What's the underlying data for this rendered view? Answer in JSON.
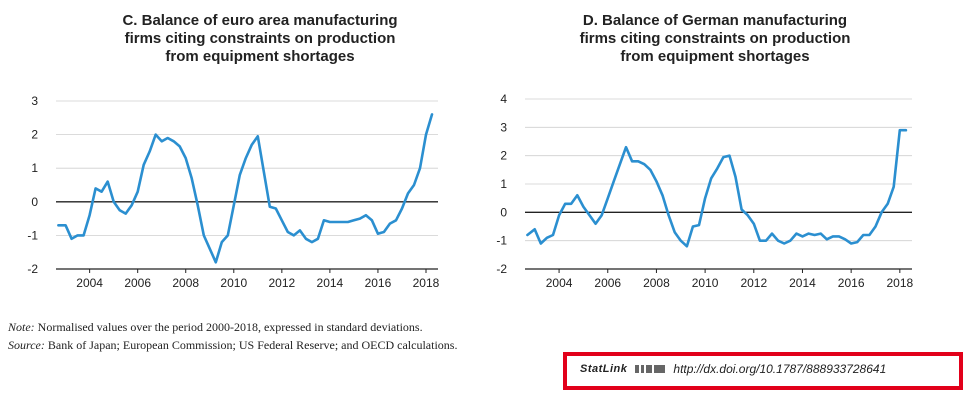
{
  "chart_data": [
    {
      "type": "line",
      "title": "C. Balance of euro area manufacturing firms citing constraints on production from equipment shortages",
      "title_lines": [
        "C. Balance of euro area manufacturing",
        "firms citing constraints on production",
        "from equipment shortages"
      ],
      "xlabel": "",
      "ylabel": "",
      "xlim": [
        2002.6,
        2018.5
      ],
      "ylim": [
        -2,
        3
      ],
      "yticks": [
        3,
        2,
        1,
        0,
        -1,
        -2
      ],
      "xticks": [
        2004,
        2006,
        2008,
        2010,
        2012,
        2014,
        2016,
        2018
      ],
      "grid": true,
      "color": "#2b8fd0",
      "series": [
        {
          "x": [
            2002.7,
            2003.0,
            2003.25,
            2003.5,
            2003.75,
            2004.0,
            2004.25,
            2004.5,
            2004.75,
            2005.0,
            2005.25,
            2005.5,
            2005.75,
            2006.0,
            2006.25,
            2006.5,
            2006.75,
            2007.0,
            2007.25,
            2007.5,
            2007.75,
            2008.0,
            2008.25,
            2008.5,
            2008.75,
            2009.0,
            2009.25,
            2009.5,
            2009.75,
            2010.0,
            2010.25,
            2010.5,
            2010.75,
            2011.0,
            2011.25,
            2011.5,
            2011.75,
            2012.0,
            2012.25,
            2012.5,
            2012.75,
            2013.0,
            2013.25,
            2013.5,
            2013.75,
            2014.0,
            2014.25,
            2014.5,
            2014.75,
            2015.0,
            2015.25,
            2015.5,
            2015.75,
            2016.0,
            2016.25,
            2016.5,
            2016.75,
            2017.0,
            2017.25,
            2017.5,
            2017.75,
            2018.0,
            2018.25
          ],
          "y": [
            -0.7,
            -0.7,
            -1.1,
            -1.0,
            -1.0,
            -0.4,
            0.4,
            0.3,
            0.6,
            0.0,
            -0.25,
            -0.35,
            -0.1,
            0.3,
            1.1,
            1.5,
            2.0,
            1.8,
            1.9,
            1.8,
            1.65,
            1.3,
            0.7,
            -0.1,
            -1.0,
            -1.4,
            -1.8,
            -1.2,
            -1.0,
            -0.1,
            0.8,
            1.3,
            1.7,
            1.95,
            0.9,
            -0.15,
            -0.2,
            -0.55,
            -0.9,
            -1.0,
            -0.85,
            -1.1,
            -1.2,
            -1.1,
            -0.55,
            -0.6,
            -0.6,
            -0.6,
            -0.6,
            -0.55,
            -0.5,
            -0.4,
            -0.55,
            -0.95,
            -0.9,
            -0.65,
            -0.55,
            -0.2,
            0.25,
            0.5,
            1.0,
            2.0,
            2.6
          ]
        }
      ]
    },
    {
      "type": "line",
      "title": "D. Balance of German manufacturing firms citing constraints on production from equipment shortages",
      "title_lines": [
        "D. Balance of German manufacturing",
        "firms citing constraints on production",
        "from equipment shortages"
      ],
      "xlabel": "",
      "ylabel": "",
      "xlim": [
        2002.6,
        2018.5
      ],
      "ylim": [
        -2,
        4
      ],
      "yticks": [
        4,
        3,
        2,
        1,
        0,
        -1,
        -2
      ],
      "xticks": [
        2004,
        2006,
        2008,
        2010,
        2012,
        2014,
        2016,
        2018
      ],
      "grid": true,
      "color": "#2b8fd0",
      "series": [
        {
          "x": [
            2002.7,
            2003.0,
            2003.25,
            2003.5,
            2003.75,
            2004.0,
            2004.25,
            2004.5,
            2004.75,
            2005.0,
            2005.25,
            2005.5,
            2005.75,
            2006.0,
            2006.25,
            2006.5,
            2006.75,
            2007.0,
            2007.25,
            2007.5,
            2007.75,
            2008.0,
            2008.25,
            2008.5,
            2008.75,
            2009.0,
            2009.25,
            2009.5,
            2009.75,
            2010.0,
            2010.25,
            2010.5,
            2010.75,
            2011.0,
            2011.25,
            2011.5,
            2011.75,
            2012.0,
            2012.25,
            2012.5,
            2012.75,
            2013.0,
            2013.25,
            2013.5,
            2013.75,
            2014.0,
            2014.25,
            2014.5,
            2014.75,
            2015.0,
            2015.25,
            2015.5,
            2015.75,
            2016.0,
            2016.25,
            2016.5,
            2016.75,
            2017.0,
            2017.25,
            2017.5,
            2017.75,
            2018.0,
            2018.25
          ],
          "y": [
            -0.8,
            -0.6,
            -1.1,
            -0.9,
            -0.8,
            -0.1,
            0.3,
            0.3,
            0.6,
            0.2,
            -0.1,
            -0.4,
            -0.1,
            0.5,
            1.1,
            1.7,
            2.3,
            1.8,
            1.8,
            1.7,
            1.5,
            1.1,
            0.6,
            -0.1,
            -0.7,
            -1.0,
            -1.2,
            -0.5,
            -0.45,
            0.5,
            1.2,
            1.55,
            1.95,
            2.0,
            1.25,
            0.1,
            -0.1,
            -0.4,
            -1.0,
            -1.0,
            -0.75,
            -1.0,
            -1.1,
            -1.0,
            -0.75,
            -0.85,
            -0.75,
            -0.8,
            -0.75,
            -0.95,
            -0.85,
            -0.85,
            -0.95,
            -1.1,
            -1.05,
            -0.8,
            -0.8,
            -0.5,
            0.0,
            0.3,
            0.9,
            2.9,
            2.9
          ]
        }
      ]
    }
  ],
  "footer": {
    "note_label": "Note:",
    "note_text": "Normalised values over the period 2000-2018, expressed in standard deviations.",
    "source_label": "Source:",
    "source_text": "Bank of Japan; European Commission; US Federal Reserve; and OECD calculations.",
    "statlink_logo": "StatLink",
    "statlink_url": "http://dx.doi.org/10.1787/888933728641",
    "highlight_color": "#e2001a"
  }
}
